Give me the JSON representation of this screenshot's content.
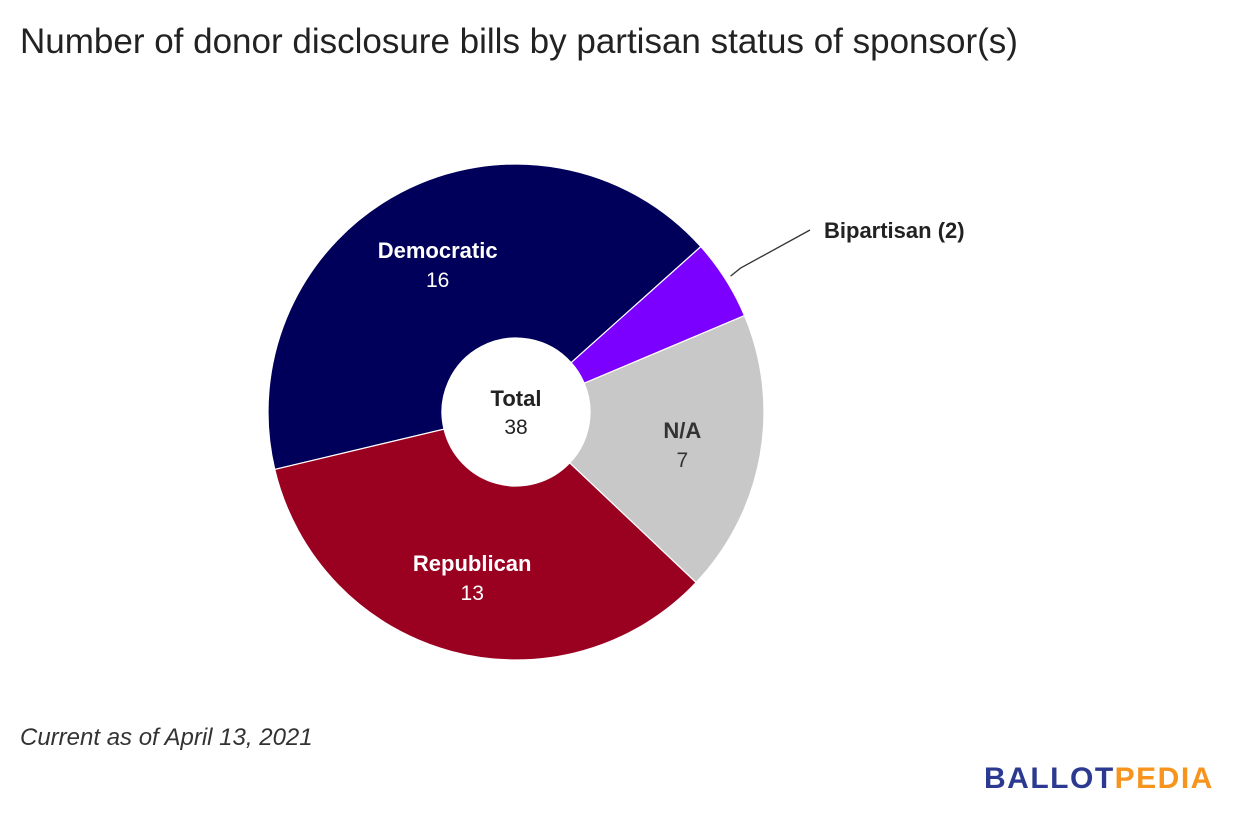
{
  "title": "Number of donor disclosure bills by partisan status of sponsor(s)",
  "footnote": "Current as of April 13, 2021",
  "brand": {
    "part1": "BALLOT",
    "part2": "PEDIA",
    "color1": "#2b3990",
    "color2": "#f7941d"
  },
  "chart_data": {
    "type": "pie",
    "variant": "donut",
    "title": "Number of donor disclosure bills by partisan status of sponsor(s)",
    "center_label": "Total",
    "center_value": "38",
    "slices": [
      {
        "name": "Democratic",
        "value": 16,
        "color": "#00005a",
        "label_color": "#ffffff",
        "callout": false
      },
      {
        "name": "Bipartisan",
        "value": 2,
        "color": "#7b00ff",
        "callout": true,
        "callout_text": "Bipartisan (2)"
      },
      {
        "name": "N/A",
        "value": 7,
        "color": "#c8c8c8",
        "label_color": "#333333",
        "callout": false
      },
      {
        "name": "Republican",
        "value": 13,
        "color": "#9a0020",
        "label_color": "#ffffff",
        "callout": false
      }
    ]
  }
}
